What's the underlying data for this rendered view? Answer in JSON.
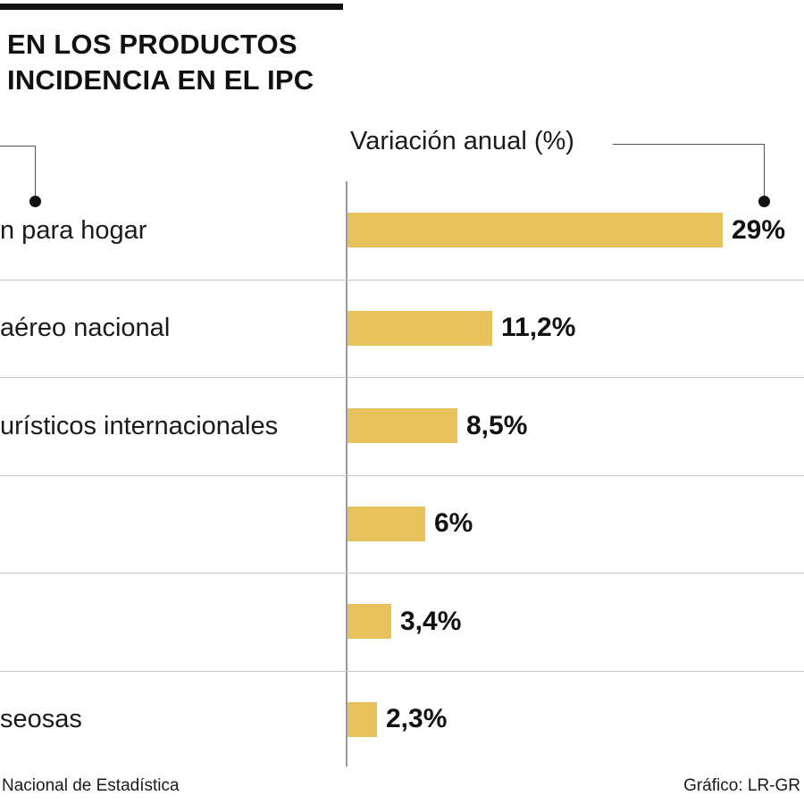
{
  "title": {
    "line1": "EN LOS PRODUCTOS",
    "line2": "INCIDENCIA EN EL IPC"
  },
  "axis_header": "Variación anual (%)",
  "footer": {
    "source": "Nacional de Estadística",
    "credit": "Gráfico: LR-GR"
  },
  "colors": {
    "bar": "#e8c25c",
    "text": "#1a1a1a",
    "rule": "#111111"
  },
  "chart_data": {
    "type": "bar",
    "orientation": "horizontal",
    "categories": [
      "n para hogar",
      "aéreo nacional",
      "urísticos internacionales",
      "",
      "",
      "seosas"
    ],
    "values": [
      29,
      11.2,
      8.5,
      6,
      3.4,
      2.3
    ],
    "value_labels": [
      "29%",
      "11,2%",
      "8,5%",
      "6%",
      "3,4%",
      "2,3%"
    ],
    "xlabel": "Variación anual (%)",
    "xlim": [
      0,
      29
    ]
  }
}
